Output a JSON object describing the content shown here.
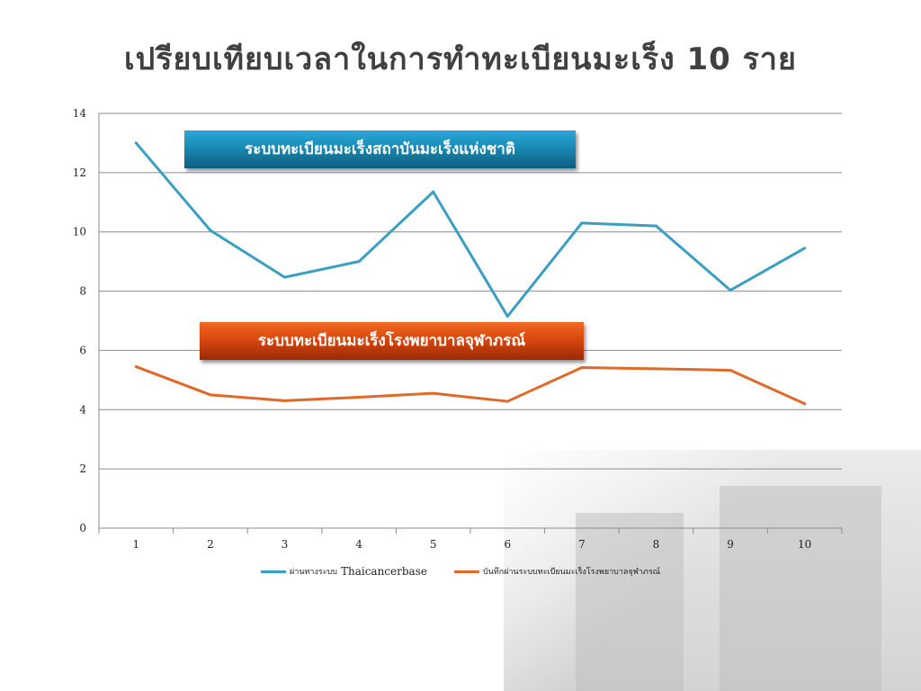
{
  "slide": {
    "title": "เปรียบเทียบเวลาในการทำทะเบียนมะเร็ง 10 ราย"
  },
  "banners": {
    "blue": "ระบบทะเบียนมะเร็งสถาบันมะเร็งแห่งชาติ",
    "orange": "ระบบทะเบียนมะเร็งโรงพยาบาลจุฬาภรณ์"
  },
  "legend": {
    "series1_prefix": "ผ่านทางระบบ",
    "series1_suffix": "Thaicancerbase",
    "series2": "บันทึกผ่านระบบทะเบียนมะเร็งโรงพยาบาลจุฬาภรณ์"
  },
  "colors": {
    "series1": "#3a9fc2",
    "series2": "#e0692a",
    "grid": "#8c8c8c"
  },
  "chart_data": {
    "type": "line",
    "x": [
      1,
      2,
      3,
      4,
      5,
      6,
      7,
      8,
      9,
      10
    ],
    "ylim": [
      0,
      14
    ],
    "yticks": [
      0,
      2,
      4,
      6,
      8,
      10,
      12,
      14
    ],
    "grid": true,
    "legend_position": "bottom",
    "series": [
      {
        "name": "ผ่านทางระบบ Thaicancerbase",
        "values": [
          13.0,
          10.05,
          8.47,
          9.0,
          11.35,
          7.15,
          10.3,
          10.2,
          8.03,
          9.45
        ]
      },
      {
        "name": "บันทึกผ่านระบบทะเบียนมะเร็งโรงพยาบาลจุฬาภรณ์",
        "values": [
          5.45,
          4.5,
          4.3,
          4.42,
          4.55,
          4.28,
          5.42,
          5.38,
          5.33,
          4.2
        ]
      }
    ]
  }
}
